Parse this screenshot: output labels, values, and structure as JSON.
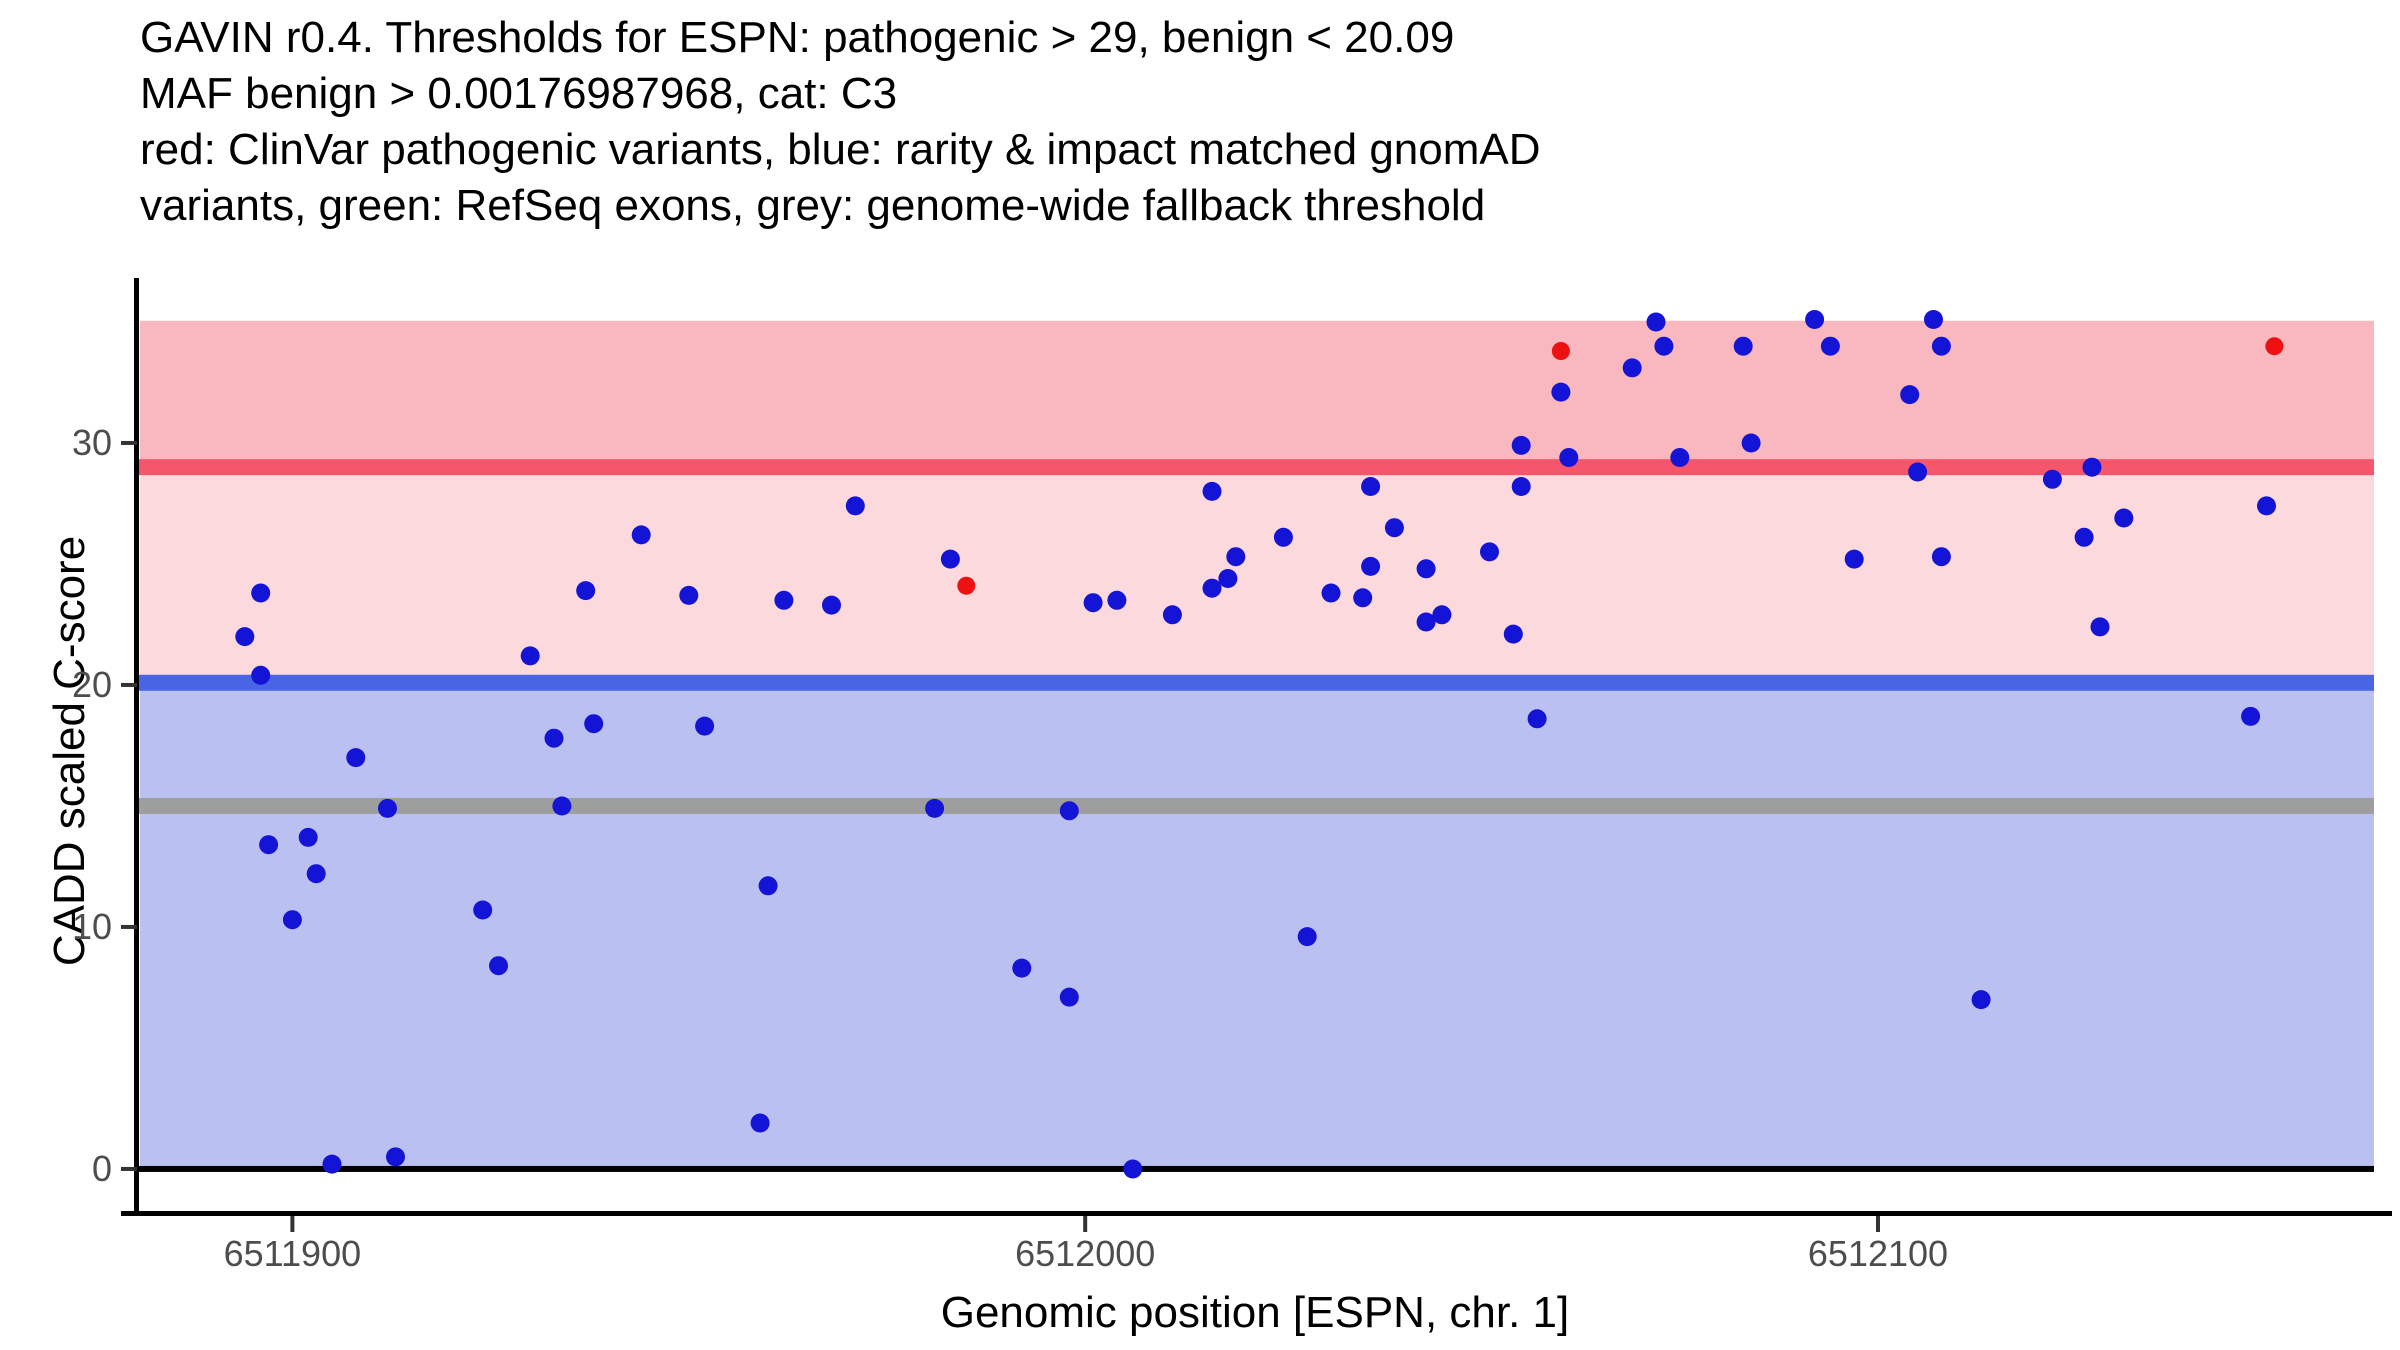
{
  "title": {
    "lines": [
      "GAVIN r0.4. Thresholds for ESPN: pathogenic > 29, benign < 20.09",
      "MAF benign > 0.00176987968, cat: C3",
      "red: ClinVar pathogenic variants, blue: rarity & impact matched gnomAD",
      "variants, green: RefSeq exons, grey: genome-wide fallback threshold"
    ]
  },
  "chart_data": {
    "type": "scatter",
    "xlabel": "Genomic position [ESPN, chr. 1]",
    "ylabel": "CADD scaled C-score",
    "xlim": [
      6511880,
      6512163
    ],
    "ylim": [
      -1.8,
      36.6
    ],
    "x_ticks": [
      {
        "value": 6511900,
        "label": "6511900"
      },
      {
        "value": 6512000,
        "label": "6512000"
      },
      {
        "value": 6512100,
        "label": "6512100"
      }
    ],
    "y_ticks": [
      {
        "value": 0,
        "label": "0"
      },
      {
        "value": 10,
        "label": "10"
      },
      {
        "value": 20,
        "label": "20"
      },
      {
        "value": 30,
        "label": "30"
      }
    ],
    "thresholds": {
      "pathogenic_gt": 29,
      "benign_lt": 20.09,
      "genome_wide_fallback": 15
    },
    "bands": [
      {
        "name": "pathogenic-zone",
        "y0": 29,
        "y1": 35.05,
        "color": "#F9B8BF"
      },
      {
        "name": "intermediate-zone",
        "y0": 20.09,
        "y1": 29,
        "color": "#FBD9DC"
      },
      {
        "name": "benign-zone",
        "y0": 0,
        "y1": 20.09,
        "color": "#BAC1F0"
      }
    ],
    "hlines": [
      {
        "name": "pathogenic-threshold-line",
        "y": 29,
        "color": "#F5566B",
        "thickness": 16
      },
      {
        "name": "benign-threshold-line",
        "y": 20.09,
        "color": "#4A64E6",
        "thickness": 16
      },
      {
        "name": "fallback-threshold-line",
        "y": 15,
        "color": "#9E9E9E",
        "thickness": 16
      },
      {
        "name": "zero-line",
        "y": 0,
        "color": "#000000",
        "thickness": 6
      }
    ],
    "series": [
      {
        "name": "rarity & impact matched gnomAD variants",
        "color": "#1414D7",
        "radius": 9.5,
        "points": [
          [
            6511894,
            22.0
          ],
          [
            6511896,
            23.8
          ],
          [
            6511896,
            20.4
          ],
          [
            6511897,
            13.4
          ],
          [
            6511900,
            10.3
          ],
          [
            6511902,
            13.7
          ],
          [
            6511903,
            12.2
          ],
          [
            6511905,
            0.2
          ],
          [
            6511908,
            17.0
          ],
          [
            6511912,
            14.9
          ],
          [
            6511913,
            0.5
          ],
          [
            6511924,
            10.7
          ],
          [
            6511926,
            8.4
          ],
          [
            6511930,
            21.2
          ],
          [
            6511933,
            17.8
          ],
          [
            6511934,
            15.0
          ],
          [
            6511937,
            23.9
          ],
          [
            6511938,
            18.4
          ],
          [
            6511944,
            26.2
          ],
          [
            6511950,
            23.7
          ],
          [
            6511952,
            18.3
          ],
          [
            6511959,
            1.9
          ],
          [
            6511960,
            11.7
          ],
          [
            6511962,
            23.5
          ],
          [
            6511968,
            23.3
          ],
          [
            6511971,
            27.4
          ],
          [
            6511981,
            14.9
          ],
          [
            6511983,
            25.2
          ],
          [
            6511992,
            8.3
          ],
          [
            6511998,
            14.8
          ],
          [
            6511998,
            7.1
          ],
          [
            6512001,
            23.4
          ],
          [
            6512004,
            23.5
          ],
          [
            6512006,
            0.0
          ],
          [
            6512011,
            22.9
          ],
          [
            6512016,
            24.0
          ],
          [
            6512016,
            28.0
          ],
          [
            6512018,
            24.4
          ],
          [
            6512019,
            25.3
          ],
          [
            6512025,
            26.1
          ],
          [
            6512028,
            9.6
          ],
          [
            6512031,
            23.8
          ],
          [
            6512035,
            23.6
          ],
          [
            6512036,
            28.2
          ],
          [
            6512036,
            24.9
          ],
          [
            6512039,
            26.5
          ],
          [
            6512043,
            22.6
          ],
          [
            6512043,
            24.8
          ],
          [
            6512045,
            22.9
          ],
          [
            6512051,
            25.5
          ],
          [
            6512054,
            22.1
          ],
          [
            6512055,
            29.9
          ],
          [
            6512055,
            28.2
          ],
          [
            6512057,
            18.6
          ],
          [
            6512060,
            32.1
          ],
          [
            6512061,
            29.4
          ],
          [
            6512069,
            33.1
          ],
          [
            6512072,
            35.0
          ],
          [
            6512073,
            34.0
          ],
          [
            6512075,
            29.4
          ],
          [
            6512083,
            34.0
          ],
          [
            6512084,
            30.0
          ],
          [
            6512092,
            35.1
          ],
          [
            6512094,
            34.0
          ],
          [
            6512097,
            25.2
          ],
          [
            6512104,
            32.0
          ],
          [
            6512105,
            28.8
          ],
          [
            6512107,
            35.1
          ],
          [
            6512108,
            34.0
          ],
          [
            6512108,
            25.3
          ],
          [
            6512113,
            7.0
          ],
          [
            6512122,
            28.5
          ],
          [
            6512126,
            26.1
          ],
          [
            6512127,
            29.0
          ],
          [
            6512128,
            22.4
          ],
          [
            6512131,
            26.9
          ],
          [
            6512147,
            18.7
          ],
          [
            6512149,
            27.4
          ]
        ]
      },
      {
        "name": "ClinVar pathogenic variants",
        "color": "#EE1111",
        "radius": 9,
        "points": [
          [
            6511985,
            24.1
          ],
          [
            6512060,
            33.8
          ],
          [
            6512150,
            34.0
          ]
        ]
      }
    ],
    "grid": false,
    "legend": "none (described in title text)"
  },
  "colors": {
    "axis_text": "#4D4D4D",
    "axis_line": "#000000",
    "background": "#FFFFFF"
  }
}
